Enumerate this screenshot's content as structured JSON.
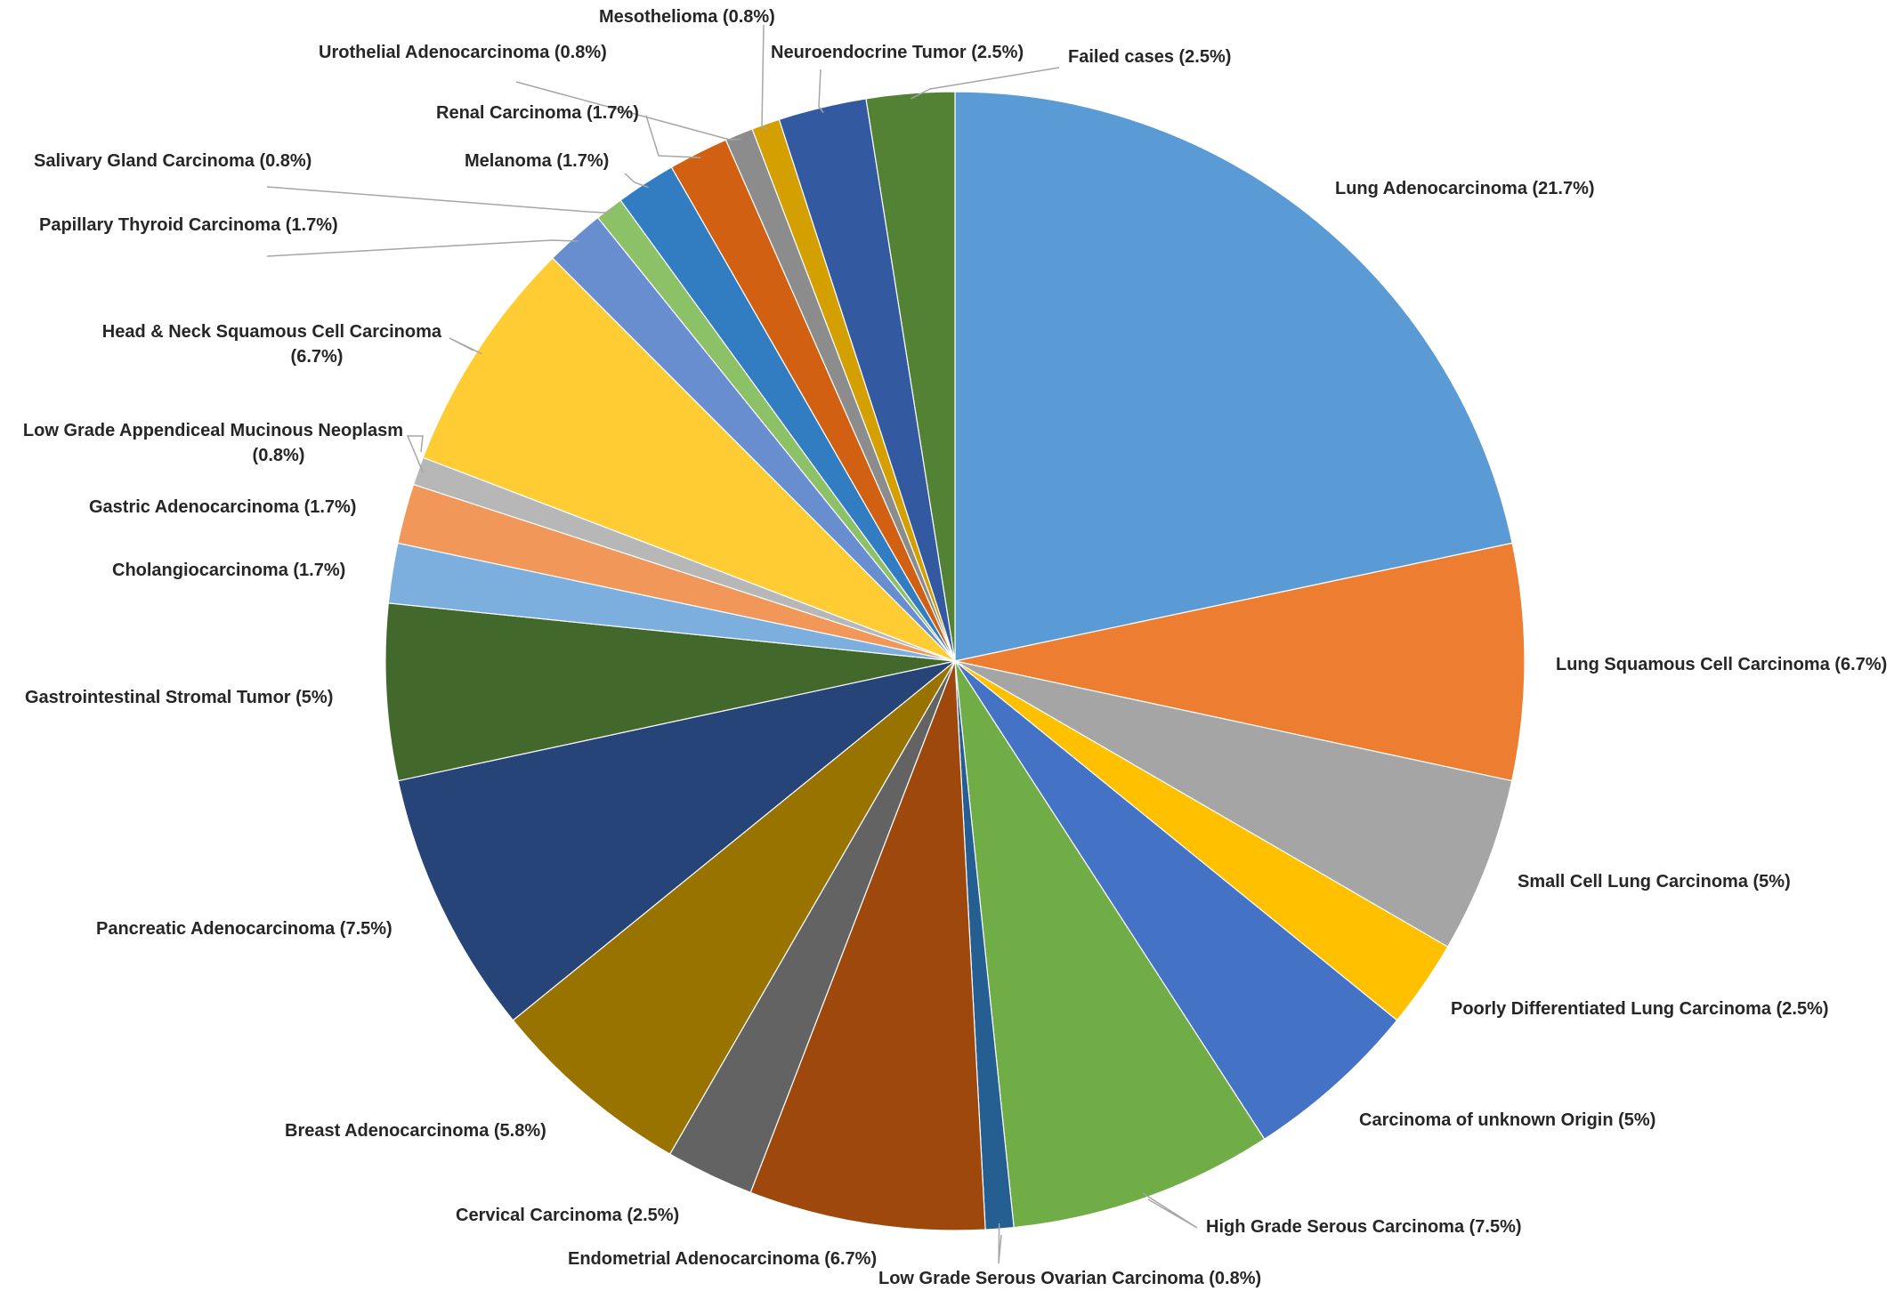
{
  "chart_data": {
    "type": "pie",
    "title": "",
    "start": "12 o'clock",
    "direction": "clockwise",
    "slices": [
      {
        "label": "Lung Adenocarcinoma (21.7%)",
        "value": 21.7,
        "color": "#5b9bd5"
      },
      {
        "label": "Lung Squamous Cell Carcinoma (6.7%)",
        "value": 6.7,
        "color": "#ed7d31"
      },
      {
        "label": "Small Cell Lung Carcinoma (5%)",
        "value": 5,
        "color": "#a5a5a5"
      },
      {
        "label": "Poorly Differentiated Lung Carcinoma (2.5%)",
        "value": 2.5,
        "color": "#ffc000"
      },
      {
        "label": "Carcinoma of unknown Origin (5%)",
        "value": 5,
        "color": "#4472c4"
      },
      {
        "label": "High Grade Serous Carcinoma (7.5%)",
        "value": 7.5,
        "color": "#70ad47"
      },
      {
        "label": "Low Grade Serous Ovarian Carcinoma (0.8%)",
        "value": 0.8,
        "color": "#255e91"
      },
      {
        "label": "Endometrial Adenocarcinoma (6.7%)",
        "value": 6.7,
        "color": "#9e480e"
      },
      {
        "label": "Cervical Carcinoma (2.5%)",
        "value": 2.5,
        "color": "#636363"
      },
      {
        "label": "Breast Adenocarcinoma (5.8%)",
        "value": 5.8,
        "color": "#997300"
      },
      {
        "label": "Pancreatic Adenocarcinoma (7.5%)",
        "value": 7.5,
        "color": "#264478"
      },
      {
        "label": "Gastrointestinal Stromal Tumor (5%)",
        "value": 5,
        "color": "#43682b"
      },
      {
        "label": "Cholangiocarcinoma (1.7%)",
        "value": 1.7,
        "color": "#7cafdd"
      },
      {
        "label": "Gastric Adenocarcinoma (1.7%)",
        "value": 1.7,
        "color": "#f1975a"
      },
      {
        "label": [
          "Low Grade Appendiceal Mucinous Neoplasm",
          "(0.8%)"
        ],
        "value": 0.8,
        "color": "#b7b7b7"
      },
      {
        "label": [
          "Head & Neck Squamous Cell Carcinoma",
          "(6.7%)"
        ],
        "value": 6.7,
        "color": "#ffcd33"
      },
      {
        "label": "Papillary Thyroid Carcinoma (1.7%)",
        "value": 1.7,
        "color": "#698ed0"
      },
      {
        "label": "Salivary Gland Carcinoma (0.8%)",
        "value": 0.8,
        "color": "#8cc168"
      },
      {
        "label": "Melanoma (1.7%)",
        "value": 1.7,
        "color": "#327dc2"
      },
      {
        "label": "Renal Carcinoma (1.7%)",
        "value": 1.7,
        "color": "#d26012"
      },
      {
        "label": "Urothelial Adenocarcinoma (0.8%)",
        "value": 0.8,
        "color": "#8c8c8c"
      },
      {
        "label": "Mesothelioma (0.8%)",
        "value": 0.8,
        "color": "#d49f00"
      },
      {
        "label": "Neuroendocrine Tumor (2.5%)",
        "value": 2.5,
        "color": "#335aa1"
      },
      {
        "label": "Failed cases  (2.5%)",
        "value": 2.5,
        "color": "#548235"
      }
    ]
  }
}
